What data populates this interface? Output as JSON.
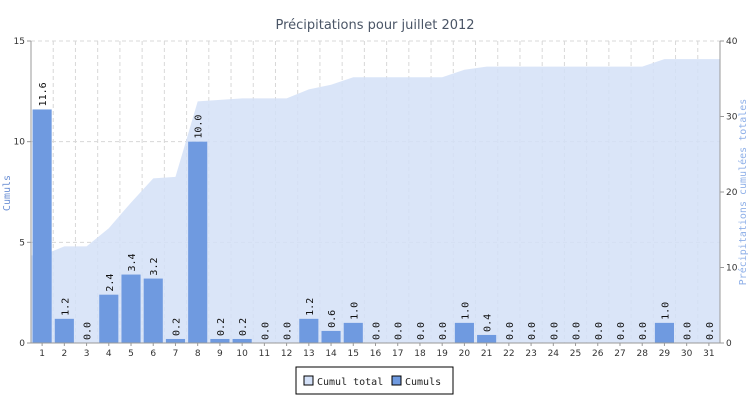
{
  "chart_data": {
    "type": "bar",
    "title": "Précipitations pour juillet 2012",
    "ylabel_left": "Cumuls",
    "ylabel_right": "Précipitations cumulées totales",
    "ylim_left": [
      0,
      15
    ],
    "ylim_right": [
      0,
      40
    ],
    "yticks_left": [
      "0",
      "5",
      "10",
      "15"
    ],
    "yticks_right": [
      "0",
      "10",
      "20",
      "30",
      "40"
    ],
    "grid": true,
    "legend_position": "bottom-center",
    "categories": [
      "1",
      "2",
      "3",
      "4",
      "5",
      "6",
      "7",
      "8",
      "9",
      "10",
      "11",
      "12",
      "13",
      "14",
      "15",
      "16",
      "17",
      "18",
      "19",
      "20",
      "21",
      "22",
      "23",
      "24",
      "25",
      "26",
      "27",
      "28",
      "29",
      "30",
      "31"
    ],
    "series": [
      {
        "name": "Cumuls",
        "type": "bar",
        "axis": "left",
        "color": "#6f9ae0",
        "values": [
          11.6,
          1.2,
          0.0,
          2.4,
          3.4,
          3.2,
          0.2,
          10.0,
          0.2,
          0.2,
          0.0,
          0.0,
          1.2,
          0.6,
          1.0,
          0.0,
          0.0,
          0.0,
          0.0,
          1.0,
          0.4,
          0.0,
          0.0,
          0.0,
          0.0,
          0.0,
          0.0,
          0.0,
          1.0,
          0.0,
          0.0
        ],
        "value_labels": [
          "11.6",
          "1.2",
          "0.0",
          "2.4",
          "3.4",
          "3.2",
          "0.2",
          "10.0",
          "0.2",
          "0.2",
          "0.0",
          "0.0",
          "1.2",
          "0.6",
          "1.0",
          "0.0",
          "0.0",
          "0.0",
          "0.0",
          "1.0",
          "0.4",
          "0.0",
          "0.0",
          "0.0",
          "0.0",
          "0.0",
          "0.0",
          "0.0",
          "1.0",
          "0.0",
          "0.0"
        ]
      },
      {
        "name": "Cumul total",
        "type": "area",
        "axis": "right",
        "color": "#d3e0f7",
        "values": [
          11.6,
          12.8,
          12.8,
          15.2,
          18.6,
          21.8,
          22.0,
          32.0,
          32.2,
          32.4,
          32.4,
          32.4,
          33.6,
          34.2,
          35.2,
          35.2,
          35.2,
          35.2,
          35.2,
          36.2,
          36.6,
          36.6,
          36.6,
          36.6,
          36.6,
          36.6,
          36.6,
          36.6,
          37.6,
          37.6,
          37.6
        ]
      }
    ]
  }
}
